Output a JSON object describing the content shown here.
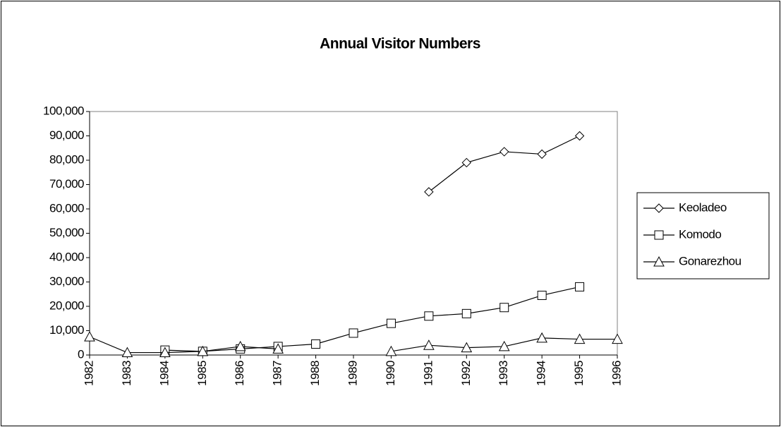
{
  "chart_data": {
    "type": "line",
    "title": "Annual Visitor Numbers",
    "categories": [
      "1982",
      "1983",
      "1984",
      "1985",
      "1986",
      "1987",
      "1988",
      "1989",
      "1990",
      "1991",
      "1992",
      "1993",
      "1994",
      "1995",
      "1996"
    ],
    "series": [
      {
        "name": "Keoladeo",
        "color": "#000000",
        "marker": "diamond",
        "values": [
          null,
          null,
          null,
          null,
          null,
          null,
          null,
          null,
          null,
          67000,
          79000,
          83500,
          82500,
          90000,
          null
        ]
      },
      {
        "name": "Komodo",
        "color": "#000000",
        "marker": "square",
        "values": [
          null,
          null,
          2000,
          1500,
          2500,
          3500,
          4500,
          9000,
          13000,
          16000,
          17000,
          19500,
          24500,
          28000,
          null
        ]
      },
      {
        "name": "Gonarezhou",
        "color": "#000000",
        "marker": "triangle",
        "values": [
          7500,
          1000,
          1000,
          1500,
          3500,
          2500,
          null,
          null,
          1500,
          4000,
          3000,
          3500,
          7000,
          6500,
          6500
        ]
      }
    ],
    "ylim": [
      0,
      100000
    ],
    "yticks": [
      0,
      {
        "value": 10000,
        "label": "10,000"
      },
      {
        "value": 20000,
        "label": "20,000"
      },
      {
        "value": 30000,
        "label": "30,000"
      },
      {
        "value": 40000,
        "label": "40,000"
      },
      {
        "value": 50000,
        "label": "50,000"
      },
      {
        "value": 60000,
        "label": "60,000"
      },
      {
        "value": 70000,
        "label": "70,000"
      },
      {
        "value": 80000,
        "label": "80,000"
      },
      {
        "value": 90000,
        "label": "90,000"
      },
      {
        "value": 100000,
        "label": "100,000"
      }
    ],
    "grid": false,
    "legend": "right"
  }
}
